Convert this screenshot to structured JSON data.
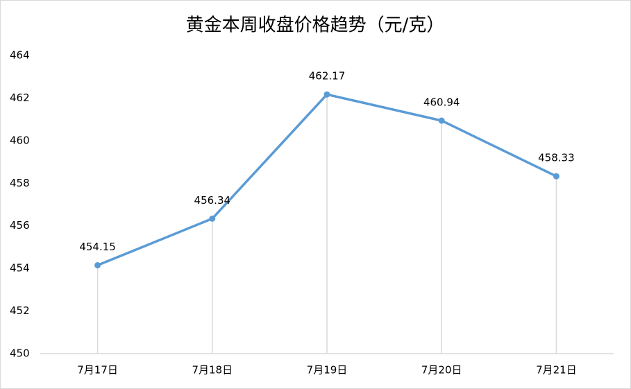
{
  "chart_data": {
    "type": "line",
    "title": "黄金本周收盘价格趋势（元/克）",
    "categories": [
      "7月17日",
      "7月18日",
      "7月19日",
      "7月20日",
      "7月21日"
    ],
    "series": [
      {
        "name": "收盘价",
        "color": "#5b9bd5",
        "values": [
          454.15,
          456.34,
          462.17,
          460.94,
          458.33
        ]
      }
    ],
    "ylim": [
      450,
      464
    ],
    "yticks": [
      450,
      452,
      454,
      456,
      458,
      460,
      462,
      464
    ],
    "grid": false,
    "drop_lines": true,
    "data_labels": true
  }
}
